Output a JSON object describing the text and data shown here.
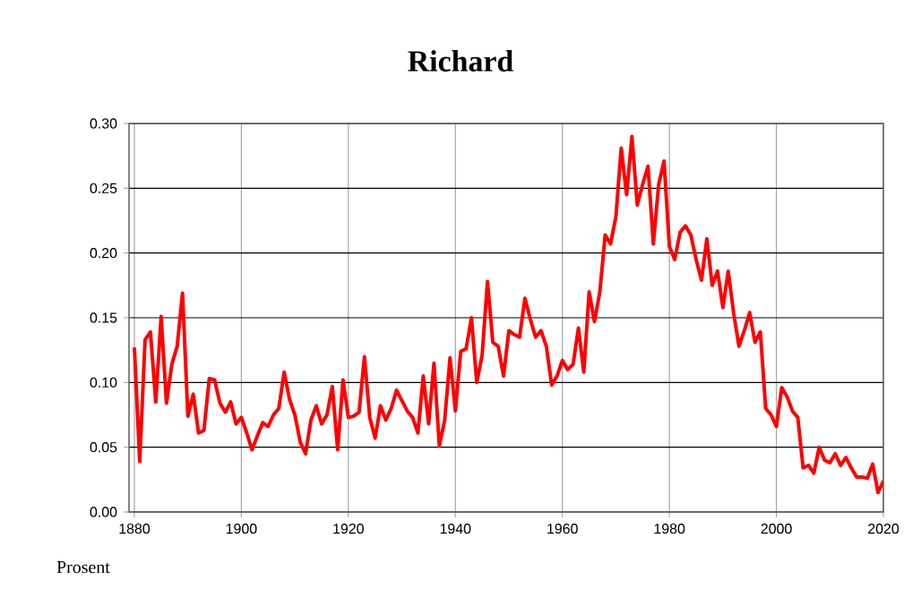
{
  "chart_data": {
    "type": "line",
    "title": "Richard",
    "annotations": [
      "Prosent"
    ],
    "xlim": [
      1879,
      2020
    ],
    "xticks": [
      1880,
      1900,
      1920,
      1940,
      1960,
      1980,
      2000,
      2020
    ],
    "ylim": [
      0,
      0.3
    ],
    "yticks": [
      {
        "value": 0,
        "label": "0.00"
      },
      {
        "value": 0.05,
        "label": "0.05"
      },
      {
        "value": 0.1,
        "label": "0.10"
      },
      {
        "value": 0.15,
        "label": "0.15"
      },
      {
        "value": 0.2,
        "label": "0.20"
      },
      {
        "value": 0.25,
        "label": "0.25"
      },
      {
        "value": 0.3,
        "label": "0.30"
      }
    ],
    "grid": true,
    "marker": "none",
    "line_style": "solid",
    "series": [
      {
        "color": "#ff0000",
        "x": [
          1880,
          1881,
          1882,
          1883,
          1884,
          1885,
          1886,
          1887,
          1888,
          1889,
          1890,
          1891,
          1892,
          1893,
          1894,
          1895,
          1896,
          1897,
          1898,
          1899,
          1900,
          1901,
          1902,
          1903,
          1904,
          1905,
          1906,
          1907,
          1908,
          1909,
          1910,
          1911,
          1912,
          1913,
          1914,
          1915,
          1916,
          1917,
          1918,
          1919,
          1920,
          1921,
          1922,
          1923,
          1924,
          1925,
          1926,
          1927,
          1928,
          1929,
          1931,
          1932,
          1933,
          1934,
          1935,
          1936,
          1937,
          1938,
          1939,
          1940,
          1941,
          1942,
          1943,
          1944,
          1945,
          1946,
          1947,
          1948,
          1949,
          1950,
          1951,
          1952,
          1953,
          1954,
          1955,
          1956,
          1957,
          1958,
          1959,
          1960,
          1961,
          1962,
          1963,
          1964,
          1965,
          1966,
          1967,
          1968,
          1969,
          1970,
          1971,
          1972,
          1973,
          1974,
          1975,
          1976,
          1977,
          1978,
          1979,
          1980,
          1981,
          1982,
          1983,
          1984,
          1985,
          1986,
          1987,
          1988,
          1989,
          1990,
          1991,
          1992,
          1993,
          1994,
          1995,
          1996,
          1997,
          1998,
          1999,
          2000,
          2001,
          2002,
          2003,
          2004,
          2005,
          2006,
          2007,
          2008,
          2009,
          2010,
          2011,
          2012,
          2013,
          2014,
          2015,
          2016,
          2017,
          2018,
          2019,
          2020
        ],
        "values": [
          0.127,
          0.039,
          0.133,
          0.139,
          0.085,
          0.151,
          0.084,
          0.114,
          0.128,
          0.169,
          0.074,
          0.091,
          0.061,
          0.063,
          0.103,
          0.102,
          0.084,
          0.077,
          0.085,
          0.068,
          0.073,
          0.061,
          0.048,
          0.059,
          0.069,
          0.066,
          0.075,
          0.08,
          0.108,
          0.087,
          0.075,
          0.054,
          0.045,
          0.071,
          0.082,
          0.068,
          0.075,
          0.097,
          0.048,
          0.102,
          0.073,
          0.074,
          0.077,
          0.12,
          0.073,
          0.057,
          0.082,
          0.071,
          0.08,
          0.094,
          0.078,
          0.073,
          0.061,
          0.105,
          0.068,
          0.115,
          0.051,
          0.071,
          0.119,
          0.078,
          0.124,
          0.126,
          0.15,
          0.1,
          0.121,
          0.178,
          0.131,
          0.128,
          0.105,
          0.14,
          0.137,
          0.135,
          0.165,
          0.149,
          0.135,
          0.14,
          0.128,
          0.098,
          0.105,
          0.117,
          0.11,
          0.114,
          0.142,
          0.108,
          0.17,
          0.147,
          0.17,
          0.214,
          0.207,
          0.228,
          0.281,
          0.245,
          0.29,
          0.237,
          0.253,
          0.267,
          0.207,
          0.253,
          0.271,
          0.205,
          0.195,
          0.216,
          0.221,
          0.214,
          0.195,
          0.179,
          0.211,
          0.175,
          0.186,
          0.158,
          0.186,
          0.154,
          0.128,
          0.14,
          0.154,
          0.131,
          0.139,
          0.08,
          0.075,
          0.066,
          0.096,
          0.089,
          0.078,
          0.073,
          0.034,
          0.036,
          0.03,
          0.05,
          0.04,
          0.038,
          0.045,
          0.036,
          0.042,
          0.034,
          0.027,
          0.027,
          0.026,
          0.037,
          0.015,
          0.024
        ]
      }
    ]
  }
}
